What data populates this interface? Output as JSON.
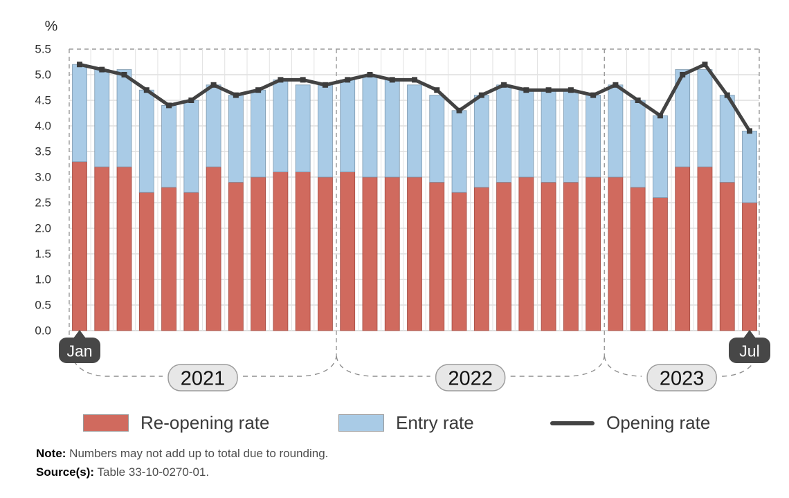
{
  "chart_data": {
    "type": "stacked-bar-line",
    "y_axis_unit": "%",
    "ylim": [
      0,
      5.5
    ],
    "ytick_step": 0.5,
    "grid": true,
    "months": [
      "Jan 2021",
      "Feb 2021",
      "Mar 2021",
      "Apr 2021",
      "May 2021",
      "Jun 2021",
      "Jul 2021",
      "Aug 2021",
      "Sep 2021",
      "Oct 2021",
      "Nov 2021",
      "Dec 2021",
      "Jan 2022",
      "Feb 2022",
      "Mar 2022",
      "Apr 2022",
      "May 2022",
      "Jun 2022",
      "Jul 2022",
      "Aug 2022",
      "Sep 2022",
      "Oct 2022",
      "Nov 2022",
      "Dec 2022",
      "Jan 2023",
      "Feb 2023",
      "Mar 2023",
      "Apr 2023",
      "May 2023",
      "Jun 2023",
      "Jul 2023"
    ],
    "year_labels": [
      "2021",
      "2022",
      "2023"
    ],
    "months_per_year": [
      12,
      12,
      7
    ],
    "first_month_badge": "Jan",
    "last_month_badge": "Jul",
    "series": [
      {
        "name": "Re-opening rate",
        "type": "bar",
        "color": "#d06a5e",
        "stroke": "#a14b41",
        "values": [
          3.3,
          3.2,
          3.2,
          2.7,
          2.8,
          2.7,
          3.2,
          2.9,
          3.0,
          3.1,
          3.1,
          3.0,
          3.1,
          3.0,
          3.0,
          3.0,
          2.9,
          2.7,
          2.8,
          2.9,
          3.0,
          2.9,
          2.9,
          3.0,
          3.0,
          2.8,
          2.6,
          3.2,
          3.2,
          2.9,
          2.5
        ]
      },
      {
        "name": "Entry rate",
        "type": "bar",
        "color": "#a9cbe6",
        "stroke": "#7d98ae",
        "values": [
          1.9,
          1.9,
          1.9,
          2.0,
          1.6,
          1.8,
          1.6,
          1.7,
          1.7,
          1.8,
          1.7,
          1.8,
          1.8,
          2.0,
          1.9,
          1.8,
          1.7,
          1.6,
          1.8,
          1.9,
          1.7,
          1.8,
          1.8,
          1.6,
          1.8,
          1.7,
          1.6,
          1.9,
          1.9,
          1.7,
          1.4
        ]
      },
      {
        "name": "Opening rate",
        "type": "line",
        "color": "#434343",
        "marker_color": "#3c3c3c",
        "values": [
          5.2,
          5.1,
          5.0,
          4.7,
          4.4,
          4.5,
          4.8,
          4.6,
          4.7,
          4.9,
          4.9,
          4.8,
          4.9,
          5.0,
          4.9,
          4.9,
          4.7,
          4.3,
          4.6,
          4.8,
          4.7,
          4.7,
          4.7,
          4.6,
          4.8,
          4.5,
          4.2,
          5.0,
          5.2,
          4.6,
          3.9
        ]
      }
    ],
    "badge_bg": "#474747",
    "pill_bg": "#e7e7e7",
    "pill_border": "#9c9c9c",
    "gridline_color": "#cdcdcd",
    "dashed_color": "#9a9a9a"
  },
  "notes": {
    "note_label": "Note:",
    "note_text": " Numbers may not add up to total due to rounding.",
    "source_label": "Source(s):",
    "source_text": " Table 33-10-0270-01."
  }
}
